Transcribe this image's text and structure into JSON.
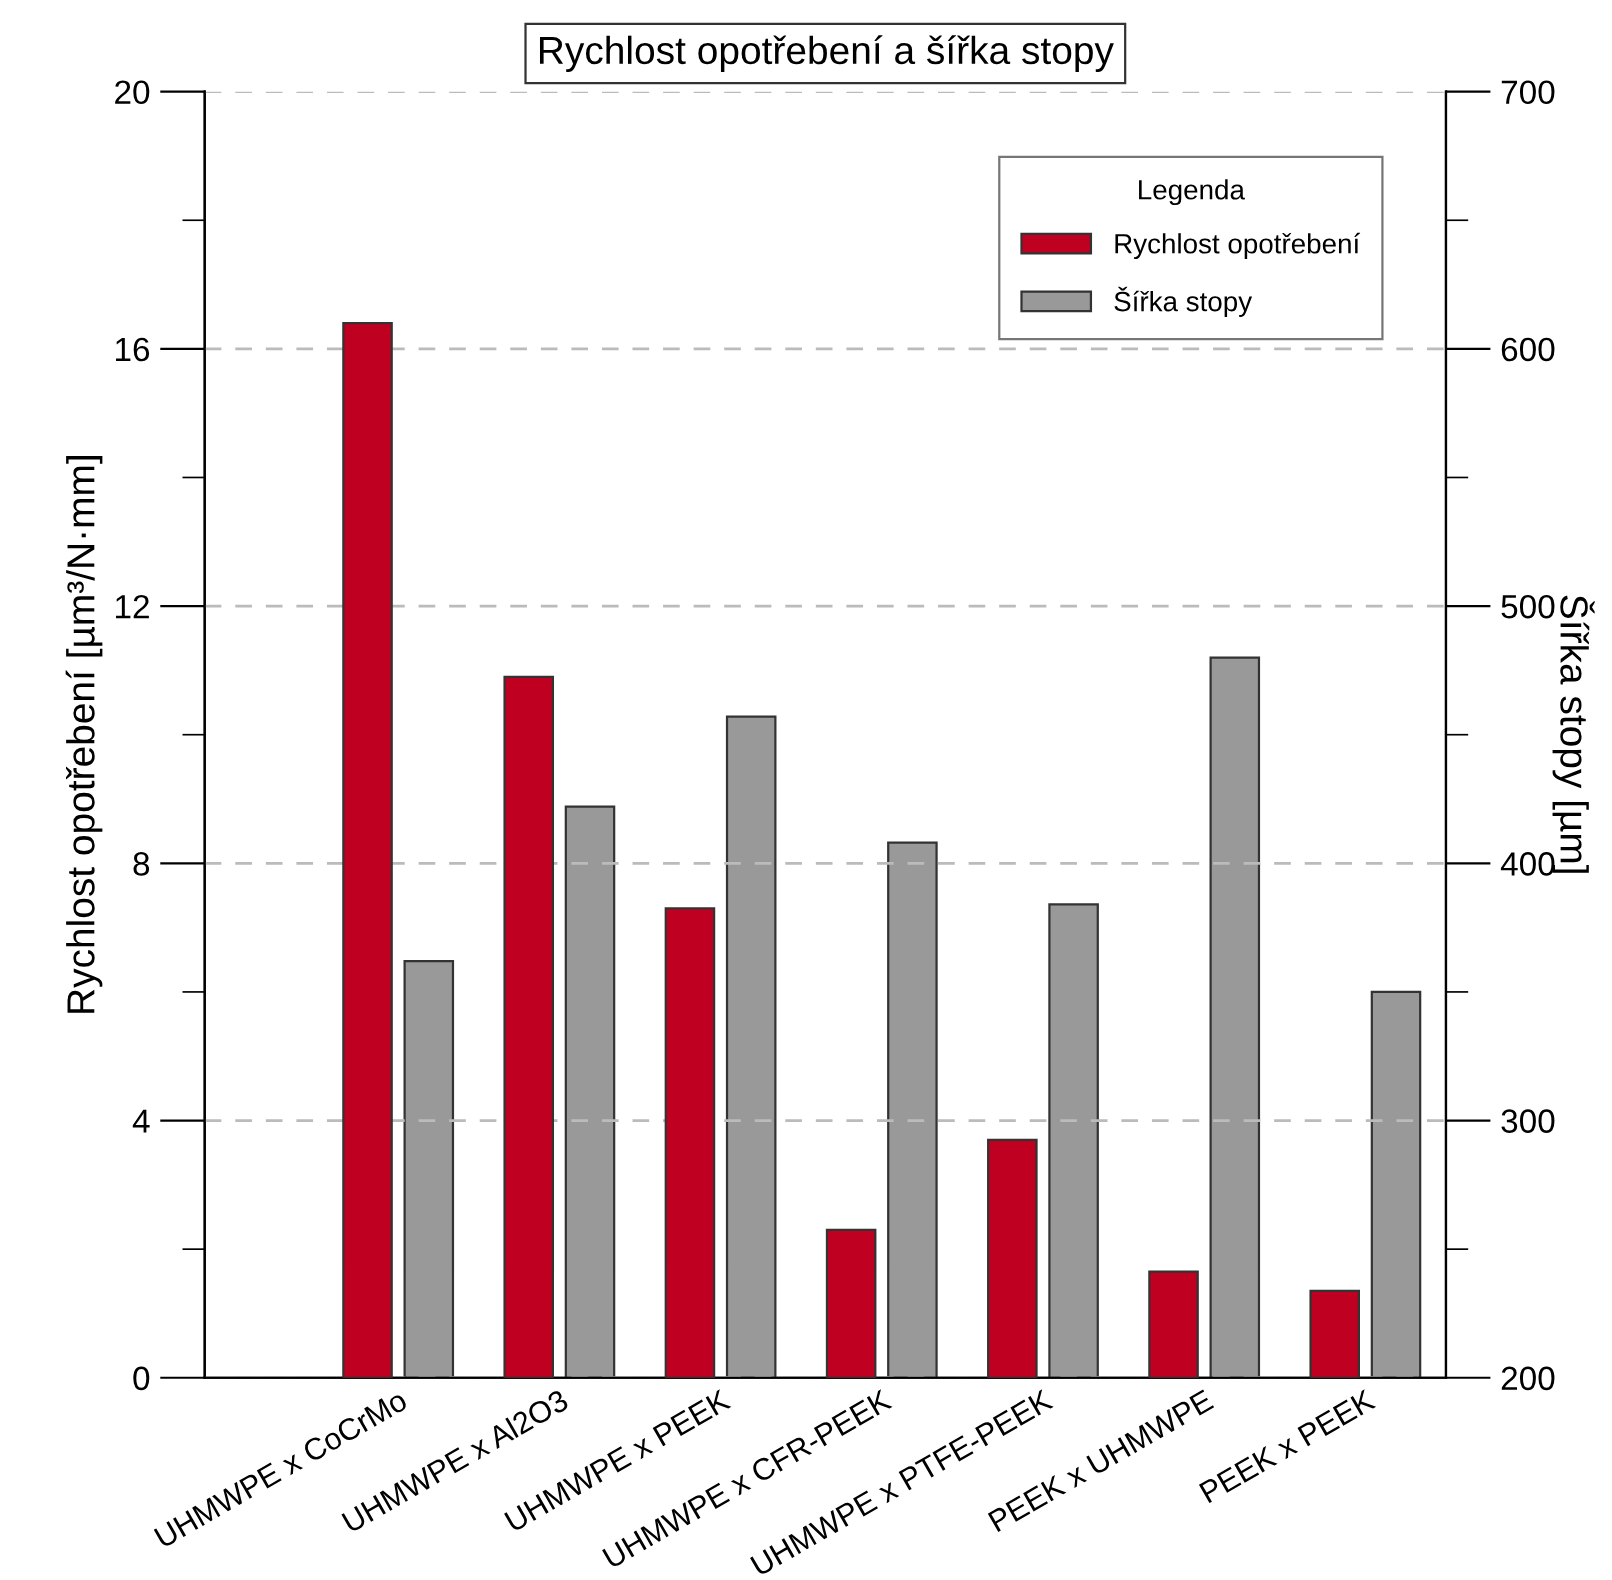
{
  "chart_data": {
    "type": "bar",
    "title": "Rychlost opotřebení a šířka stopy",
    "ylabel": "Rychlost opotřebení [µm³/N·mm]",
    "y2label": "Šířka stopy [µm]",
    "legend_title": "Legenda",
    "legend": "top right",
    "grid": "y",
    "categories": [
      "UHMWPE x CoCrMo",
      "UHMWPE x Al2O3",
      "UHMWPE x PEEK",
      "UHMWPE x CFR-PEEK",
      "UHMWPE x PTFE-PEEK",
      "PEEK x UHMWPE",
      "PEEK x PEEK"
    ],
    "series": [
      {
        "name": "Rychlost opotřebení",
        "color": "#c00020",
        "values": [
          16.4,
          10.9,
          7.3,
          2.3,
          3.7,
          1.65,
          1.35
        ]
      },
      {
        "name": "Šířka stopy",
        "color": "#999999",
        "axis": "y2",
        "values": [
          362,
          422,
          457,
          408,
          384,
          480,
          350
        ]
      }
    ],
    "ylim": [
      0,
      20
    ],
    "yticks": [
      0,
      {
        "value": 2,
        "label": null
      },
      4,
      {
        "value": 6,
        "label": null
      },
      8,
      {
        "value": 10,
        "label": null
      },
      12,
      {
        "value": 14,
        "label": null
      },
      16,
      {
        "value": 18,
        "label": null
      },
      20
    ],
    "y2lim": [
      200,
      700
    ],
    "y2ticks": [
      200,
      {
        "value": 250,
        "label": null
      },
      300,
      {
        "value": 350,
        "label": null
      },
      400,
      {
        "value": 450,
        "label": null
      },
      500,
      {
        "value": 550,
        "label": null
      },
      600,
      {
        "value": 650,
        "label": null
      },
      700
    ]
  }
}
